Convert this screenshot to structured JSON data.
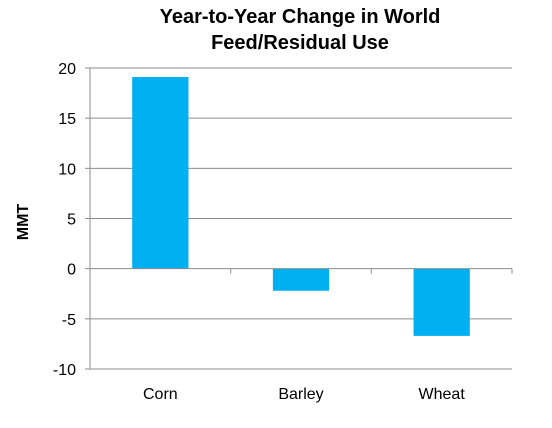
{
  "chart_data": {
    "type": "bar",
    "title_line1": "Year-to-Year Change in World",
    "title_line2": "Feed/Residual Use",
    "xlabel": "",
    "ylabel": "MMT",
    "categories": [
      "Corn",
      "Barley",
      "Wheat"
    ],
    "values": [
      19.1,
      -2.2,
      -6.7
    ],
    "ylim": [
      -10,
      20
    ],
    "yticks": [
      -10,
      -5,
      0,
      5,
      10,
      15,
      20
    ],
    "grid": true,
    "bar_color": "#00b0f0"
  }
}
